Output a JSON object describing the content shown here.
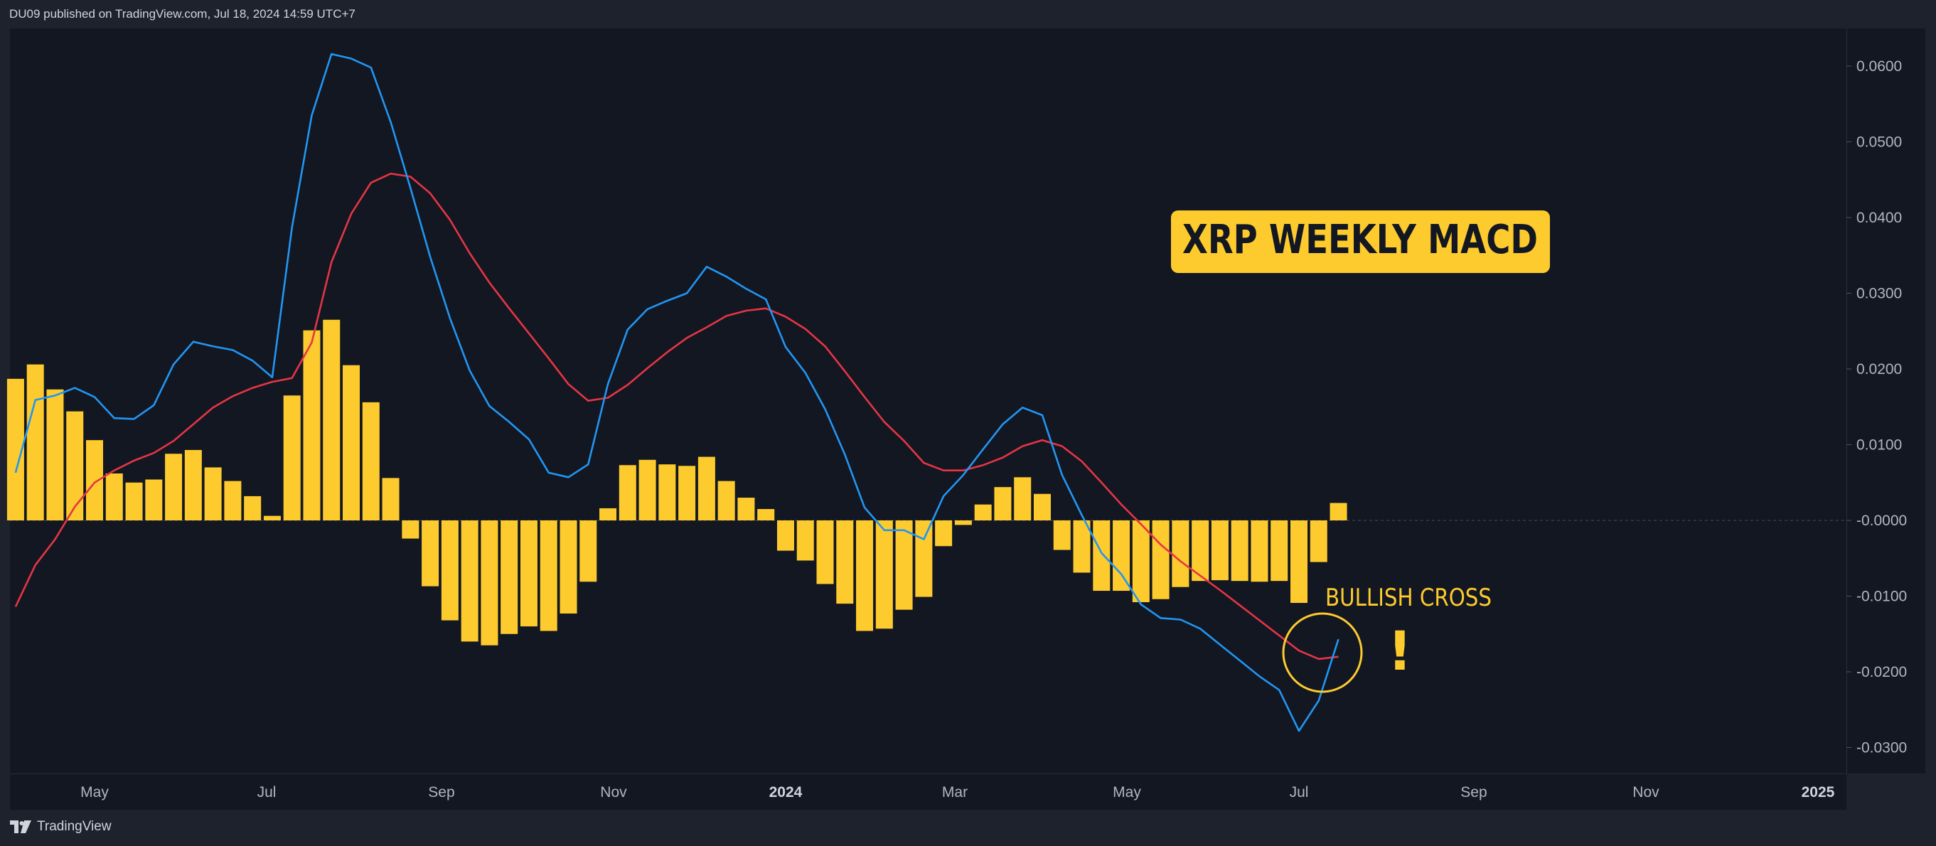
{
  "header": {
    "publish_text": "DU09 published on TradingView.com, Jul 18, 2024 14:59 UTC+7"
  },
  "footer": {
    "brand_label": "TradingView"
  },
  "chart_data": {
    "type": "macd",
    "title": "XRP WEEKLY MACD",
    "annotation": {
      "label": "BULLISH CROSS",
      "mark": "!"
    },
    "colors": {
      "macd": "#2196f3",
      "signal": "#e53545",
      "histogram": "#fdcb2e",
      "background": "#131722",
      "text": "#b2b5be"
    },
    "y_ticks": [
      0.06,
      0.05,
      0.04,
      0.03,
      0.02,
      0.01,
      0.0,
      -0.01,
      -0.02,
      -0.03
    ],
    "y_tick_labels": [
      "0.0600",
      "0.0500",
      "0.0400",
      "0.0300",
      "0.0200",
      "0.0100",
      "-0.0000",
      "-0.0100",
      "-0.0200",
      "-0.0300"
    ],
    "x_ticks": [
      {
        "label": "May",
        "date": "2023-05-01",
        "bold": false
      },
      {
        "label": "Jul",
        "date": "2023-07-01",
        "bold": false
      },
      {
        "label": "Sep",
        "date": "2023-09-01",
        "bold": false
      },
      {
        "label": "Nov",
        "date": "2023-11-01",
        "bold": false
      },
      {
        "label": "2024",
        "date": "2024-01-01",
        "bold": true
      },
      {
        "label": "Mar",
        "date": "2024-03-01",
        "bold": false
      },
      {
        "label": "May",
        "date": "2024-05-01",
        "bold": false
      },
      {
        "label": "Jul",
        "date": "2024-07-01",
        "bold": false
      },
      {
        "label": "Sep",
        "date": "2024-09-01",
        "bold": false
      },
      {
        "label": "Nov",
        "date": "2024-11-01",
        "bold": false
      },
      {
        "label": "2025",
        "date": "2025-01-01",
        "bold": true
      }
    ],
    "series": [
      {
        "name": "MACD",
        "dates": [
          "2023-04-03",
          "2023-04-10",
          "2023-04-17",
          "2023-04-24",
          "2023-05-01",
          "2023-05-08",
          "2023-05-15",
          "2023-05-22",
          "2023-05-29",
          "2023-06-05",
          "2023-06-12",
          "2023-06-19",
          "2023-06-26",
          "2023-07-03",
          "2023-07-10",
          "2023-07-17",
          "2023-07-24",
          "2023-07-31",
          "2023-08-07",
          "2023-08-14",
          "2023-08-21",
          "2023-08-28",
          "2023-09-04",
          "2023-09-11",
          "2023-09-18",
          "2023-09-25",
          "2023-10-02",
          "2023-10-09",
          "2023-10-16",
          "2023-10-23",
          "2023-10-30",
          "2023-11-06",
          "2023-11-13",
          "2023-11-20",
          "2023-11-27",
          "2023-12-04",
          "2023-12-11",
          "2023-12-18",
          "2023-12-25",
          "2024-01-01",
          "2024-01-08",
          "2024-01-15",
          "2024-01-22",
          "2024-01-29",
          "2024-02-05",
          "2024-02-12",
          "2024-02-19",
          "2024-02-26",
          "2024-03-04",
          "2024-03-11",
          "2024-03-18",
          "2024-03-25",
          "2024-04-01",
          "2024-04-08",
          "2024-04-15",
          "2024-04-22",
          "2024-04-29",
          "2024-05-06",
          "2024-05-13",
          "2024-05-20",
          "2024-05-27",
          "2024-06-03",
          "2024-06-10",
          "2024-06-17",
          "2024-06-24",
          "2024-07-01",
          "2024-07-08",
          "2024-07-15"
        ],
        "values": [
          0.0063,
          0.0159,
          0.0165,
          0.0175,
          0.0163,
          0.0135,
          0.0134,
          0.0152,
          0.0206,
          0.0236,
          0.023,
          0.0225,
          0.0211,
          0.0189,
          0.0387,
          0.0535,
          0.0616,
          0.061,
          0.0598,
          0.0526,
          0.0439,
          0.0348,
          0.0267,
          0.0198,
          0.0151,
          0.013,
          0.0107,
          0.0063,
          0.0057,
          0.0074,
          0.018,
          0.0252,
          0.0279,
          0.029,
          0.03,
          0.0335,
          0.0322,
          0.0306,
          0.0292,
          0.0229,
          0.0195,
          0.0147,
          0.0087,
          0.0017,
          -0.0013,
          -0.0013,
          -0.0025,
          0.0032,
          0.006,
          0.0094,
          0.0127,
          0.0149,
          0.0139,
          0.006,
          0.0007,
          -0.0043,
          -0.0071,
          -0.0111,
          -0.0129,
          -0.0131,
          -0.0143,
          -0.0164,
          -0.0185,
          -0.0206,
          -0.0224,
          -0.0278,
          -0.0238,
          -0.0157
        ]
      },
      {
        "name": "Signal",
        "dates": [
          "2023-04-03",
          "2023-04-10",
          "2023-04-17",
          "2023-04-24",
          "2023-05-01",
          "2023-05-08",
          "2023-05-15",
          "2023-05-22",
          "2023-05-29",
          "2023-06-05",
          "2023-06-12",
          "2023-06-19",
          "2023-06-26",
          "2023-07-03",
          "2023-07-10",
          "2023-07-17",
          "2023-07-24",
          "2023-07-31",
          "2023-08-07",
          "2023-08-14",
          "2023-08-21",
          "2023-08-28",
          "2023-09-04",
          "2023-09-11",
          "2023-09-18",
          "2023-09-25",
          "2023-10-02",
          "2023-10-09",
          "2023-10-16",
          "2023-10-23",
          "2023-10-30",
          "2023-11-06",
          "2023-11-13",
          "2023-11-20",
          "2023-11-27",
          "2023-12-04",
          "2023-12-11",
          "2023-12-18",
          "2023-12-25",
          "2024-01-01",
          "2024-01-08",
          "2024-01-15",
          "2024-01-22",
          "2024-01-29",
          "2024-02-05",
          "2024-02-12",
          "2024-02-19",
          "2024-02-26",
          "2024-03-04",
          "2024-03-11",
          "2024-03-18",
          "2024-03-25",
          "2024-04-01",
          "2024-04-08",
          "2024-04-15",
          "2024-04-22",
          "2024-04-29",
          "2024-05-06",
          "2024-05-13",
          "2024-05-20",
          "2024-05-27",
          "2024-06-03",
          "2024-06-10",
          "2024-06-17",
          "2024-06-24",
          "2024-07-01",
          "2024-07-08",
          "2024-07-15"
        ],
        "values": [
          -0.0114,
          -0.0059,
          -0.0025,
          0.0018,
          0.005,
          0.0066,
          0.0079,
          0.0089,
          0.0105,
          0.0127,
          0.0149,
          0.0164,
          0.0175,
          0.0183,
          0.0188,
          0.0235,
          0.0341,
          0.0405,
          0.0446,
          0.0458,
          0.0454,
          0.0432,
          0.0397,
          0.0353,
          0.0314,
          0.028,
          0.0247,
          0.0214,
          0.018,
          0.0158,
          0.0162,
          0.0179,
          0.0201,
          0.0222,
          0.0241,
          0.0255,
          0.027,
          0.0277,
          0.028,
          0.0269,
          0.0253,
          0.023,
          0.0197,
          0.0163,
          0.013,
          0.0105,
          0.0076,
          0.0066,
          0.0066,
          0.0073,
          0.0083,
          0.0098,
          0.0106,
          0.0098,
          0.0078,
          0.005,
          0.0021,
          -0.0005,
          -0.0032,
          -0.0054,
          -0.0073,
          -0.0092,
          -0.0112,
          -0.0132,
          -0.0152,
          -0.0172,
          -0.0183,
          -0.018
        ]
      },
      {
        "name": "Histogram",
        "dates": [
          "2023-04-03",
          "2023-04-10",
          "2023-04-17",
          "2023-04-24",
          "2023-05-01",
          "2023-05-08",
          "2023-05-15",
          "2023-05-22",
          "2023-05-29",
          "2023-06-05",
          "2023-06-12",
          "2023-06-19",
          "2023-06-26",
          "2023-07-03",
          "2023-07-10",
          "2023-07-17",
          "2023-07-24",
          "2023-07-31",
          "2023-08-07",
          "2023-08-14",
          "2023-08-21",
          "2023-08-28",
          "2023-09-04",
          "2023-09-11",
          "2023-09-18",
          "2023-09-25",
          "2023-10-02",
          "2023-10-09",
          "2023-10-16",
          "2023-10-23",
          "2023-10-30",
          "2023-11-06",
          "2023-11-13",
          "2023-11-20",
          "2023-11-27",
          "2023-12-04",
          "2023-12-11",
          "2023-12-18",
          "2023-12-25",
          "2024-01-01",
          "2024-01-08",
          "2024-01-15",
          "2024-01-22",
          "2024-01-29",
          "2024-02-05",
          "2024-02-12",
          "2024-02-19",
          "2024-02-26",
          "2024-03-04",
          "2024-03-11",
          "2024-03-18",
          "2024-03-25",
          "2024-04-01",
          "2024-04-08",
          "2024-04-15",
          "2024-04-22",
          "2024-04-29",
          "2024-05-06",
          "2024-05-13",
          "2024-05-20",
          "2024-05-27",
          "2024-06-03",
          "2024-06-10",
          "2024-06-17",
          "2024-06-24",
          "2024-07-01",
          "2024-07-08",
          "2024-07-15"
        ],
        "values": [
          0.0187,
          0.0206,
          0.0173,
          0.0144,
          0.0106,
          0.0062,
          0.005,
          0.0054,
          0.0088,
          0.0093,
          0.007,
          0.0052,
          0.0032,
          0.0006,
          0.0165,
          0.0251,
          0.0265,
          0.0205,
          0.0156,
          0.0056,
          -0.0024,
          -0.0087,
          -0.0132,
          -0.016,
          -0.0165,
          -0.015,
          -0.014,
          -0.0146,
          -0.0123,
          -0.0081,
          0.0016,
          0.0073,
          0.008,
          0.0074,
          0.0072,
          0.0084,
          0.0052,
          0.003,
          0.0015,
          -0.004,
          -0.0053,
          -0.0084,
          -0.011,
          -0.0146,
          -0.0143,
          -0.0118,
          -0.0101,
          -0.0034,
          -0.0006,
          0.0021,
          0.0044,
          0.0057,
          0.0035,
          -0.0039,
          -0.0069,
          -0.0093,
          -0.0093,
          -0.0108,
          -0.0104,
          -0.0088,
          -0.008,
          -0.0079,
          -0.008,
          -0.0081,
          -0.008,
          -0.0109,
          -0.0055,
          0.0023
        ]
      }
    ]
  }
}
